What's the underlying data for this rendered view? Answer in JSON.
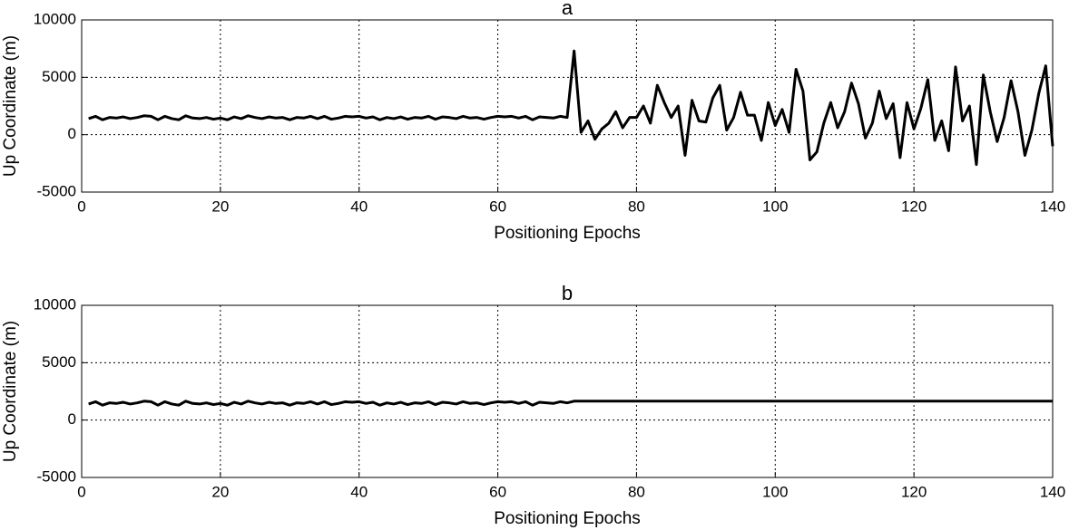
{
  "chart_data": [
    {
      "type": "line",
      "title": "a",
      "xlabel": "Positioning Epochs",
      "ylabel": "Up Coordinate (m)",
      "color": "#000000",
      "grid": true,
      "xlim": [
        0,
        140
      ],
      "xticks": [
        0,
        20,
        40,
        60,
        80,
        100,
        120,
        140
      ],
      "ylim": [
        -5000,
        10000
      ],
      "yticks": [
        -5000,
        0,
        5000,
        10000
      ],
      "x": [
        1,
        2,
        3,
        4,
        5,
        6,
        7,
        8,
        9,
        10,
        11,
        12,
        13,
        14,
        15,
        16,
        17,
        18,
        19,
        20,
        21,
        22,
        23,
        24,
        25,
        26,
        27,
        28,
        29,
        30,
        31,
        32,
        33,
        34,
        35,
        36,
        37,
        38,
        39,
        40,
        41,
        42,
        43,
        44,
        45,
        46,
        47,
        48,
        49,
        50,
        51,
        52,
        53,
        54,
        55,
        56,
        57,
        58,
        59,
        60,
        61,
        62,
        63,
        64,
        65,
        66,
        67,
        68,
        69,
        70,
        71,
        72,
        73,
        74,
        75,
        76,
        77,
        78,
        79,
        80,
        81,
        82,
        83,
        84,
        85,
        86,
        87,
        88,
        89,
        90,
        91,
        92,
        93,
        94,
        95,
        96,
        97,
        98,
        99,
        100,
        101,
        102,
        103,
        104,
        105,
        106,
        107,
        108,
        109,
        110,
        111,
        112,
        113,
        114,
        115,
        116,
        117,
        118,
        119,
        120,
        121,
        122,
        123,
        124,
        125,
        126,
        127,
        128,
        129,
        130,
        131,
        132,
        133,
        134,
        135,
        136,
        137,
        138,
        139,
        140
      ],
      "values": [
        1400,
        1600,
        1300,
        1500,
        1450,
        1550,
        1400,
        1500,
        1650,
        1600,
        1300,
        1600,
        1400,
        1300,
        1650,
        1450,
        1400,
        1500,
        1350,
        1450,
        1300,
        1550,
        1400,
        1650,
        1500,
        1400,
        1550,
        1450,
        1500,
        1300,
        1500,
        1450,
        1600,
        1400,
        1600,
        1350,
        1450,
        1600,
        1550,
        1600,
        1450,
        1550,
        1300,
        1500,
        1400,
        1550,
        1350,
        1500,
        1450,
        1600,
        1350,
        1550,
        1500,
        1400,
        1600,
        1450,
        1500,
        1350,
        1500,
        1600,
        1550,
        1600,
        1450,
        1600,
        1300,
        1550,
        1500,
        1450,
        1600,
        1500,
        7300,
        200,
        1200,
        -400,
        500,
        1000,
        2000,
        600,
        1500,
        1500,
        2500,
        1000,
        4300,
        2800,
        1500,
        2500,
        -1800,
        3000,
        1200,
        1100,
        3200,
        4300,
        400,
        1500,
        3700,
        1700,
        1700,
        -500,
        2800,
        800,
        2200,
        200,
        5700,
        3800,
        -2200,
        -1500,
        1000,
        2800,
        600,
        2000,
        4500,
        2700,
        -300,
        1000,
        3800,
        1400,
        2700,
        -2000,
        2800,
        500,
        2300,
        4800,
        -500,
        1200,
        -1400,
        5900,
        1200,
        2500,
        -2600,
        5200,
        2000,
        -600,
        1500,
        4700,
        2000,
        -1800,
        400,
        3600,
        6000,
        -1000
      ]
    },
    {
      "type": "line",
      "title": "b",
      "xlabel": "Positioning Epochs",
      "ylabel": "Up Coordinate (m)",
      "color": "#000000",
      "grid": true,
      "xlim": [
        0,
        140
      ],
      "xticks": [
        0,
        20,
        40,
        60,
        80,
        100,
        120,
        140
      ],
      "ylim": [
        -5000,
        10000
      ],
      "yticks": [
        -5000,
        0,
        5000,
        10000
      ],
      "x": [
        1,
        2,
        3,
        4,
        5,
        6,
        7,
        8,
        9,
        10,
        11,
        12,
        13,
        14,
        15,
        16,
        17,
        18,
        19,
        20,
        21,
        22,
        23,
        24,
        25,
        26,
        27,
        28,
        29,
        30,
        31,
        32,
        33,
        34,
        35,
        36,
        37,
        38,
        39,
        40,
        41,
        42,
        43,
        44,
        45,
        46,
        47,
        48,
        49,
        50,
        51,
        52,
        53,
        54,
        55,
        56,
        57,
        58,
        59,
        60,
        61,
        62,
        63,
        64,
        65,
        66,
        67,
        68,
        69,
        70,
        71,
        72,
        73,
        74,
        75,
        76,
        77,
        78,
        79,
        80,
        81,
        82,
        83,
        84,
        85,
        86,
        87,
        88,
        89,
        90,
        91,
        92,
        93,
        94,
        95,
        96,
        97,
        98,
        99,
        100,
        101,
        102,
        103,
        104,
        105,
        106,
        107,
        108,
        109,
        110,
        111,
        112,
        113,
        114,
        115,
        116,
        117,
        118,
        119,
        120,
        121,
        122,
        123,
        124,
        125,
        126,
        127,
        128,
        129,
        130,
        131,
        132,
        133,
        134,
        135,
        136,
        137,
        138,
        139,
        140
      ],
      "values": [
        1400,
        1600,
        1300,
        1500,
        1450,
        1550,
        1400,
        1500,
        1650,
        1600,
        1300,
        1600,
        1400,
        1300,
        1650,
        1450,
        1400,
        1500,
        1350,
        1450,
        1300,
        1550,
        1400,
        1650,
        1500,
        1400,
        1550,
        1450,
        1500,
        1300,
        1500,
        1450,
        1600,
        1400,
        1600,
        1350,
        1450,
        1600,
        1550,
        1600,
        1450,
        1550,
        1300,
        1500,
        1400,
        1550,
        1350,
        1500,
        1450,
        1600,
        1350,
        1550,
        1500,
        1400,
        1600,
        1450,
        1500,
        1350,
        1500,
        1600,
        1550,
        1600,
        1450,
        1600,
        1300,
        1550,
        1500,
        1450,
        1600,
        1500,
        1650,
        1650,
        1650,
        1650,
        1650,
        1650,
        1650,
        1650,
        1650,
        1650,
        1650,
        1650,
        1650,
        1650,
        1650,
        1650,
        1650,
        1650,
        1650,
        1650,
        1650,
        1650,
        1650,
        1650,
        1650,
        1650,
        1650,
        1650,
        1650,
        1650,
        1650,
        1650,
        1650,
        1650,
        1650,
        1650,
        1650,
        1650,
        1650,
        1650,
        1650,
        1650,
        1650,
        1650,
        1650,
        1650,
        1650,
        1650,
        1650,
        1650,
        1650,
        1650,
        1650,
        1650,
        1650,
        1650,
        1650,
        1650,
        1650,
        1650,
        1650,
        1650,
        1650,
        1650,
        1650,
        1650,
        1650,
        1650,
        1650,
        1650
      ]
    }
  ]
}
